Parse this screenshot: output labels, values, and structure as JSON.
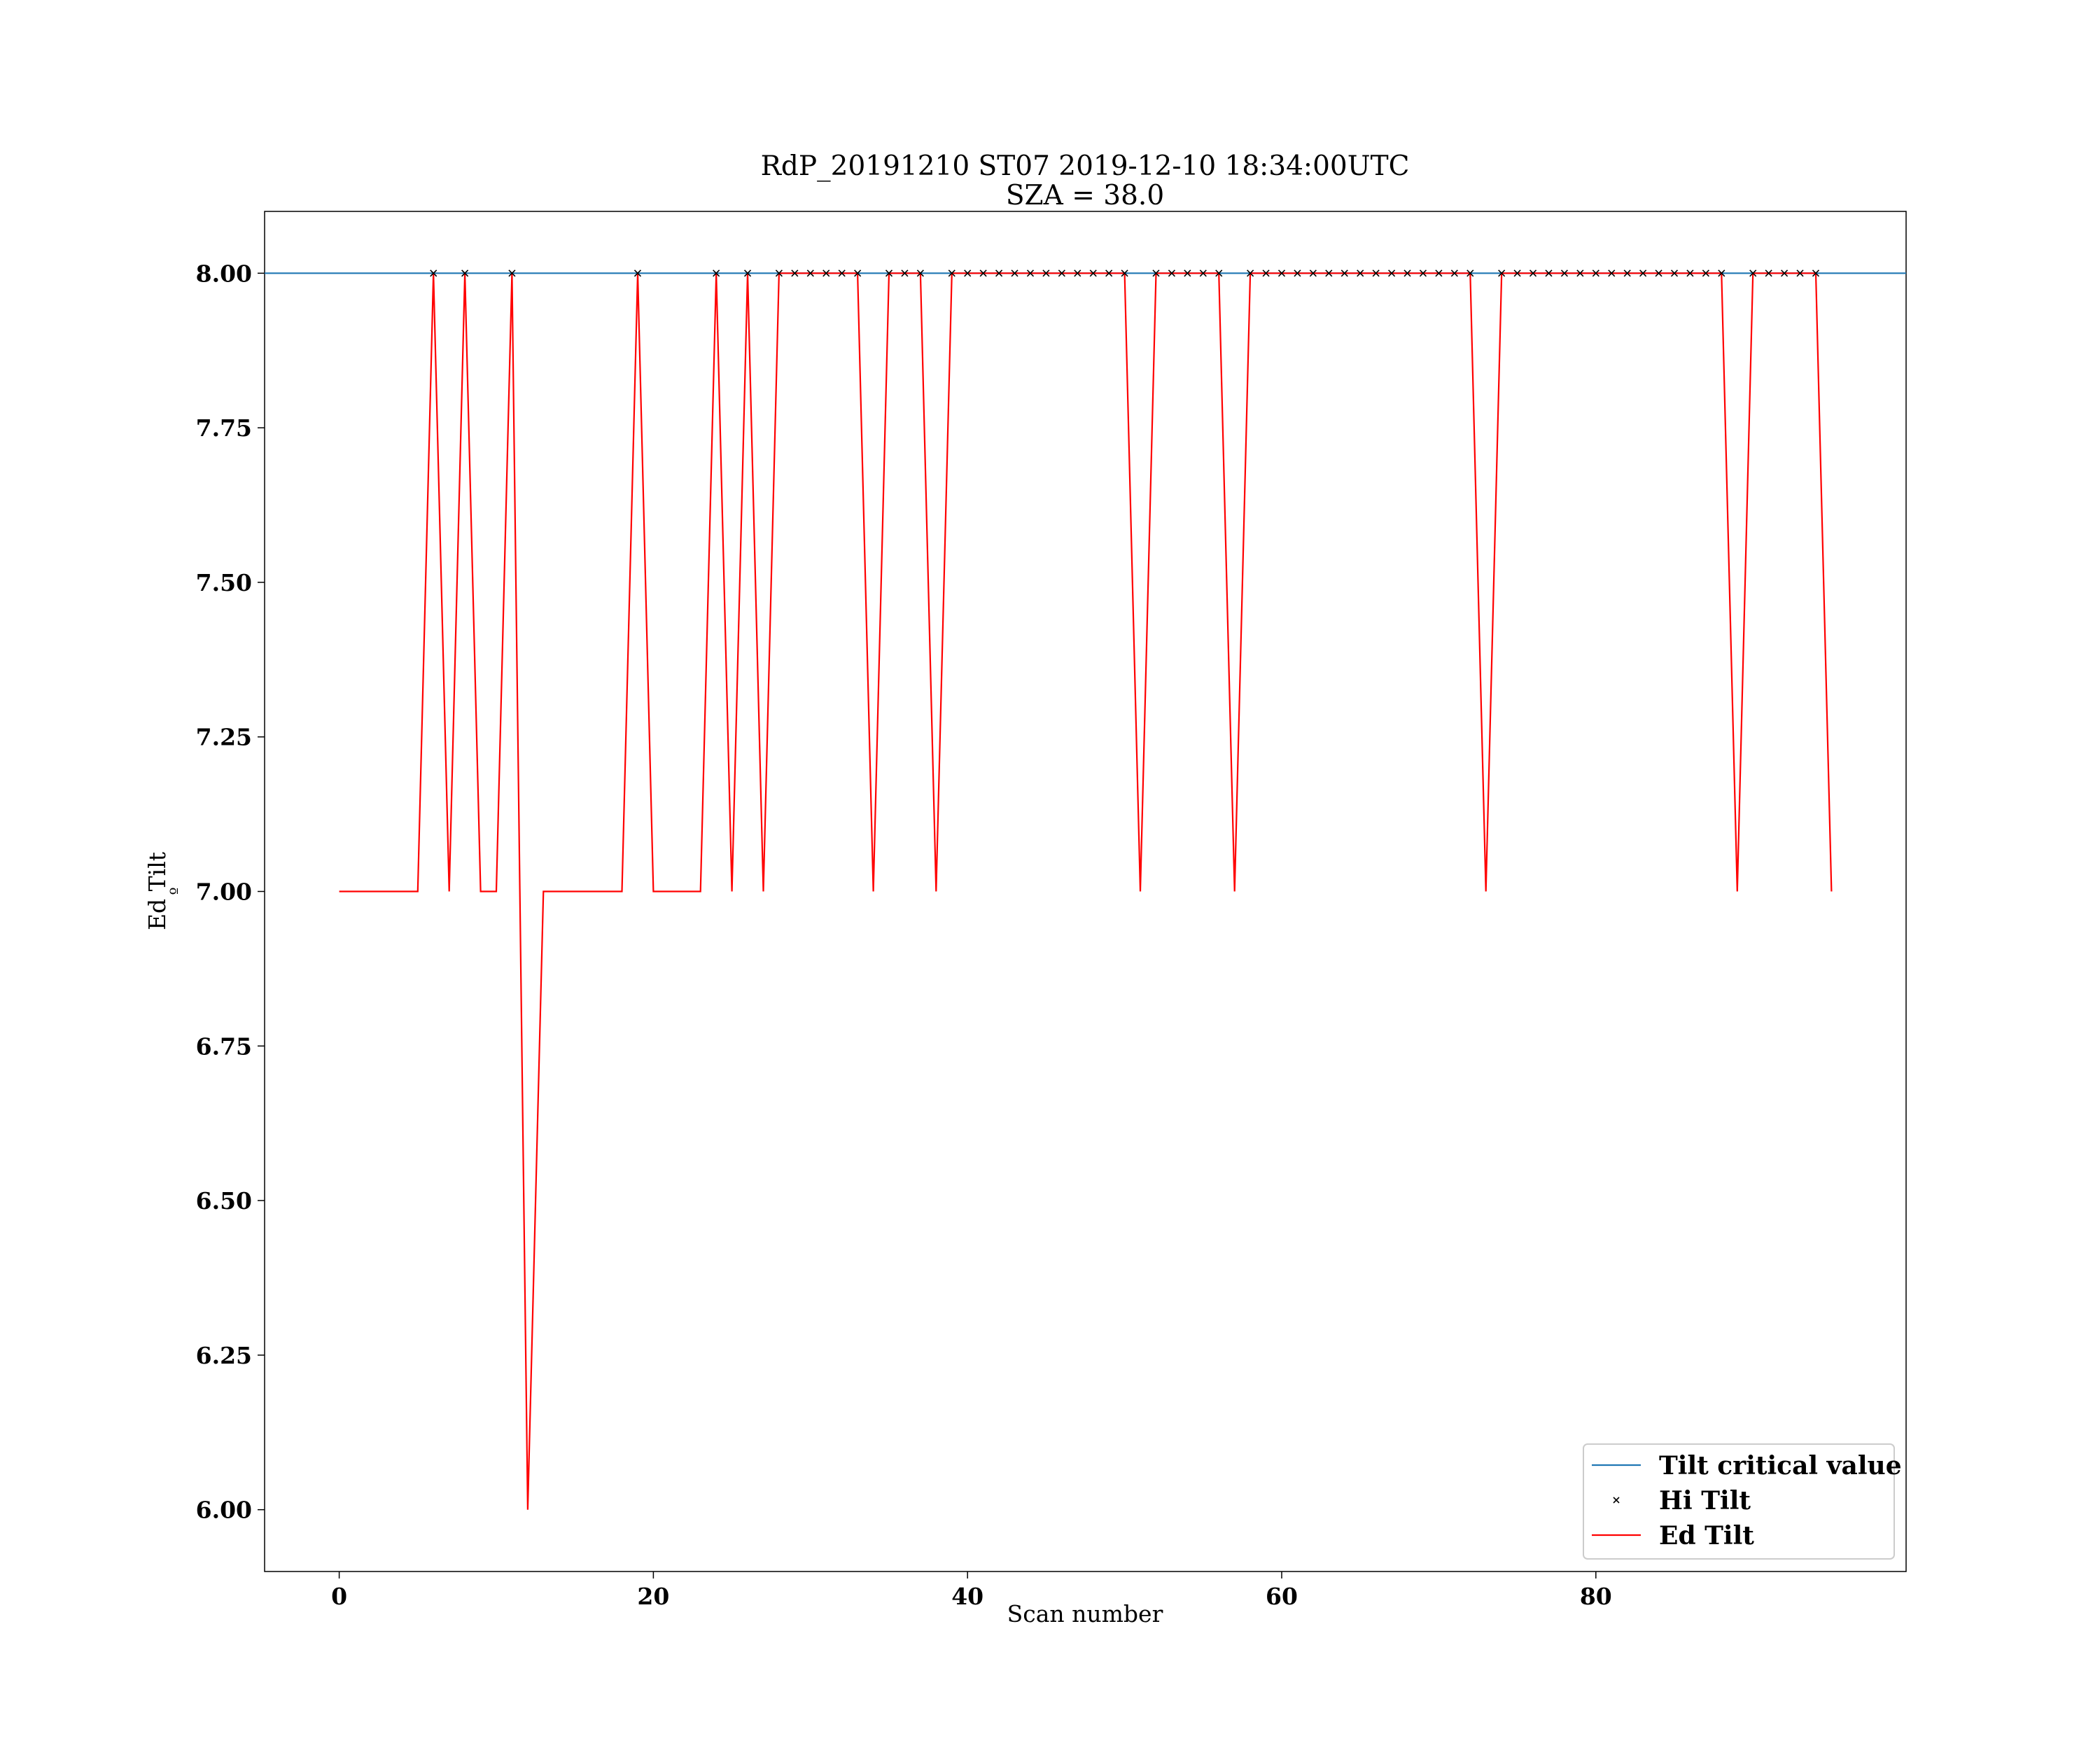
{
  "chart_data": {
    "type": "line",
    "title": "RdP_20191210 ST07 2019-12-10 18:34:00UTC",
    "subtitle": "SZA = 38.0",
    "xlabel": "Scan number",
    "ylabel": "Ed Tilt",
    "ylabel_unit": "º",
    "xlim": [
      -4.75,
      99.75
    ],
    "ylim": [
      5.9,
      8.1
    ],
    "xticks": [
      0,
      20,
      40,
      60,
      80
    ],
    "yticks": [
      6.0,
      6.25,
      6.5,
      6.75,
      7.0,
      7.25,
      7.5,
      7.75,
      8.0
    ],
    "ytick_labels": [
      "6.00",
      "6.25",
      "6.50",
      "6.75",
      "7.00",
      "7.25",
      "7.50",
      "7.75",
      "8.00"
    ],
    "grid": false,
    "legend_position": "bottom-right",
    "series": [
      {
        "name": "Tilt critical value",
        "kind": "hline",
        "color": "#1f77b4",
        "y": 8.0
      },
      {
        "name": "Hi Tilt",
        "kind": "markers",
        "marker": "x",
        "color": "#000000",
        "x": [
          6,
          8,
          11,
          19,
          24,
          26,
          28,
          29,
          30,
          31,
          32,
          33,
          35,
          36,
          37,
          39,
          40,
          41,
          42,
          43,
          44,
          45,
          46,
          47,
          48,
          49,
          50,
          52,
          53,
          54,
          55,
          56,
          58,
          59,
          60,
          61,
          62,
          63,
          64,
          65,
          66,
          67,
          68,
          69,
          70,
          71,
          72,
          74,
          75,
          76,
          77,
          78,
          79,
          80,
          81,
          82,
          83,
          84,
          85,
          86,
          87,
          88,
          90,
          91,
          92,
          93,
          94
        ],
        "y": 8.0
      },
      {
        "name": "Ed Tilt",
        "kind": "line",
        "color": "#ff0000",
        "x": [
          0,
          1,
          2,
          3,
          4,
          5,
          6,
          7,
          8,
          9,
          10,
          11,
          12,
          13,
          14,
          15,
          16,
          17,
          18,
          19,
          20,
          21,
          22,
          23,
          24,
          25,
          26,
          27,
          28,
          29,
          30,
          31,
          32,
          33,
          34,
          35,
          36,
          37,
          38,
          39,
          40,
          41,
          42,
          43,
          44,
          45,
          46,
          47,
          48,
          49,
          50,
          51,
          52,
          53,
          54,
          55,
          56,
          57,
          58,
          59,
          60,
          61,
          62,
          63,
          64,
          65,
          66,
          67,
          68,
          69,
          70,
          71,
          72,
          73,
          74,
          75,
          76,
          77,
          78,
          79,
          80,
          81,
          82,
          83,
          84,
          85,
          86,
          87,
          88,
          89,
          90,
          91,
          92,
          93,
          94,
          95
        ],
        "y": [
          7,
          7,
          7,
          7,
          7,
          7,
          8,
          7,
          8,
          7,
          7,
          8,
          6,
          7,
          7,
          7,
          7,
          7,
          7,
          8,
          7,
          7,
          7,
          7,
          8,
          7,
          8,
          7,
          8,
          8,
          8,
          8,
          8,
          8,
          7,
          8,
          8,
          8,
          7,
          8,
          8,
          8,
          8,
          8,
          8,
          8,
          8,
          8,
          8,
          8,
          8,
          7,
          8,
          8,
          8,
          8,
          8,
          7,
          8,
          8,
          8,
          8,
          8,
          8,
          8,
          8,
          8,
          8,
          8,
          8,
          8,
          8,
          8,
          7,
          8,
          8,
          8,
          8,
          8,
          8,
          8,
          8,
          8,
          8,
          8,
          8,
          8,
          8,
          8,
          7,
          8,
          8,
          8,
          8,
          8,
          7
        ]
      }
    ]
  }
}
